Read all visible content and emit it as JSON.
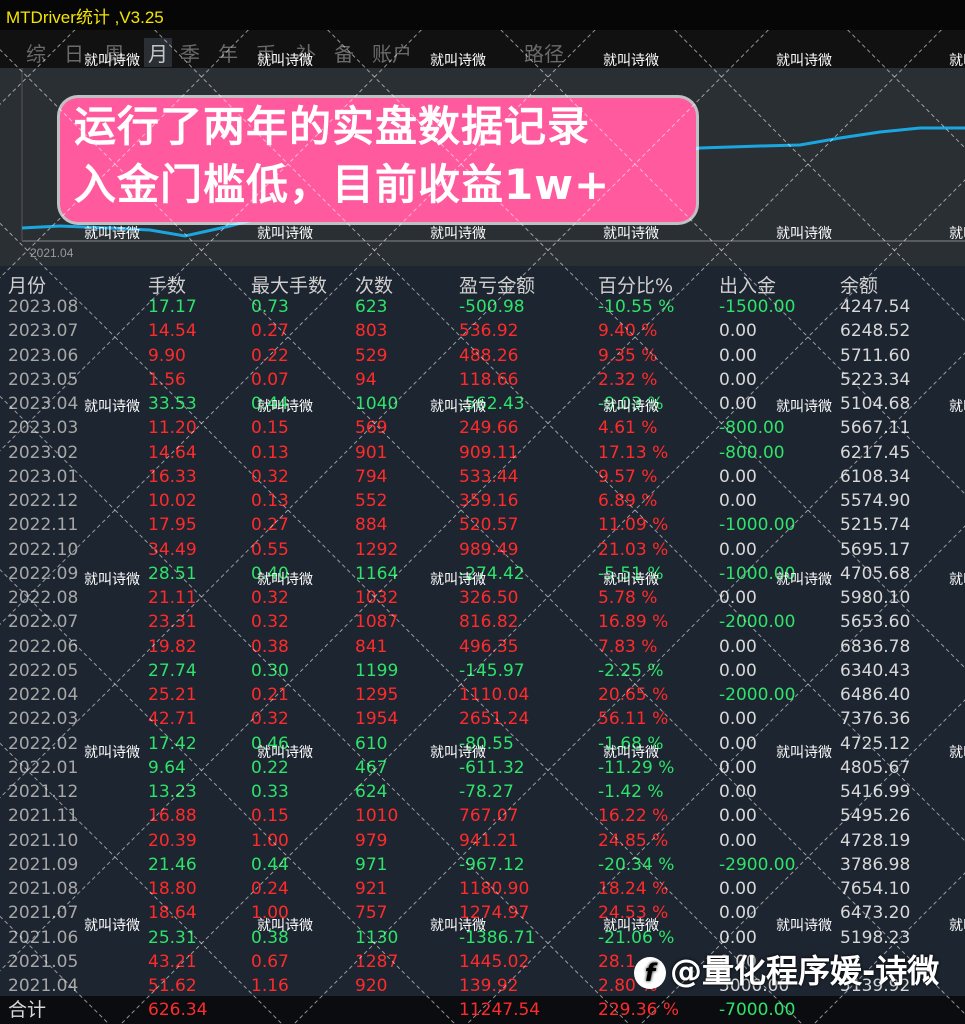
{
  "app": {
    "title": "MTDriver统计 ,V3.25"
  },
  "tabs": [
    {
      "label": "综",
      "active": false
    },
    {
      "label": "日",
      "active": false
    },
    {
      "label": "周",
      "active": false
    },
    {
      "label": "月",
      "active": true
    },
    {
      "label": "季",
      "active": false
    },
    {
      "label": "年",
      "active": false
    },
    {
      "label": "币",
      "active": false
    },
    {
      "label": "补",
      "active": false
    },
    {
      "label": "备",
      "active": false
    },
    {
      "label": "账户",
      "active": false
    },
    {
      "label": "路径",
      "active": false
    }
  ],
  "chart": {
    "x_start_label": "2021.04",
    "line_color": "#1aa7e0"
  },
  "banner": {
    "line1": "运行了两年的实盘数据记录",
    "line2": "入金门槛低，目前收益1w+"
  },
  "watermark": "就叫诗微",
  "brand": {
    "icon": "f",
    "text": "@量化程序媛-诗微"
  },
  "table": {
    "headers": [
      "月份",
      "手数",
      "最大手数",
      "次数",
      "盈亏金额",
      "百分比%",
      "出入金",
      "余额"
    ],
    "rows": [
      {
        "month": "2023.08",
        "lots": "17.17",
        "max_lots": "0.73",
        "count": "623",
        "pnl": "-500.98",
        "pct": "-10.55 %",
        "flow": "-1500.00",
        "balance": "4247.54",
        "color": "green"
      },
      {
        "month": "2023.07",
        "lots": "14.54",
        "max_lots": "0.27",
        "count": "803",
        "pnl": "536.92",
        "pct": "9.40 %",
        "flow": "0.00",
        "balance": "6248.52",
        "color": "red"
      },
      {
        "month": "2023.06",
        "lots": "9.90",
        "max_lots": "0.22",
        "count": "529",
        "pnl": "488.26",
        "pct": "9.35 %",
        "flow": "0.00",
        "balance": "5711.60",
        "color": "red"
      },
      {
        "month": "2023.05",
        "lots": "1.56",
        "max_lots": "0.07",
        "count": "94",
        "pnl": "118.66",
        "pct": "2.32 %",
        "flow": "0.00",
        "balance": "5223.34",
        "color": "red"
      },
      {
        "month": "2023.04",
        "lots": "33.53",
        "max_lots": "0.44",
        "count": "1040",
        "pnl": "-562.43",
        "pct": "-9.03 %",
        "flow": "0.00",
        "balance": "5104.68",
        "color": "green"
      },
      {
        "month": "2023.03",
        "lots": "11.20",
        "max_lots": "0.15",
        "count": "569",
        "pnl": "249.66",
        "pct": "4.61 %",
        "flow": "-800.00",
        "balance": "5667.11",
        "color": "red"
      },
      {
        "month": "2023.02",
        "lots": "14.64",
        "max_lots": "0.13",
        "count": "901",
        "pnl": "909.11",
        "pct": "17.13 %",
        "flow": "-800.00",
        "balance": "6217.45",
        "color": "red"
      },
      {
        "month": "2023.01",
        "lots": "16.33",
        "max_lots": "0.32",
        "count": "794",
        "pnl": "533.44",
        "pct": "9.57 %",
        "flow": "0.00",
        "balance": "6108.34",
        "color": "red"
      },
      {
        "month": "2022.12",
        "lots": "10.02",
        "max_lots": "0.13",
        "count": "552",
        "pnl": "359.16",
        "pct": "6.89 %",
        "flow": "0.00",
        "balance": "5574.90",
        "color": "red"
      },
      {
        "month": "2022.11",
        "lots": "17.95",
        "max_lots": "0.27",
        "count": "884",
        "pnl": "520.57",
        "pct": "11.09 %",
        "flow": "-1000.00",
        "balance": "5215.74",
        "color": "red"
      },
      {
        "month": "2022.10",
        "lots": "34.49",
        "max_lots": "0.55",
        "count": "1292",
        "pnl": "989.49",
        "pct": "21.03 %",
        "flow": "0.00",
        "balance": "5695.17",
        "color": "red"
      },
      {
        "month": "2022.09",
        "lots": "28.51",
        "max_lots": "0.40",
        "count": "1164",
        "pnl": "-274.42",
        "pct": "-5.51 %",
        "flow": "-1000.00",
        "balance": "4705.68",
        "color": "green"
      },
      {
        "month": "2022.08",
        "lots": "21.11",
        "max_lots": "0.32",
        "count": "1032",
        "pnl": "326.50",
        "pct": "5.78 %",
        "flow": "0.00",
        "balance": "5980.10",
        "color": "red"
      },
      {
        "month": "2022.07",
        "lots": "23.31",
        "max_lots": "0.32",
        "count": "1087",
        "pnl": "816.82",
        "pct": "16.89 %",
        "flow": "-2000.00",
        "balance": "5653.60",
        "color": "red"
      },
      {
        "month": "2022.06",
        "lots": "19.82",
        "max_lots": "0.38",
        "count": "841",
        "pnl": "496.35",
        "pct": "7.83 %",
        "flow": "0.00",
        "balance": "6836.78",
        "color": "red"
      },
      {
        "month": "2022.05",
        "lots": "27.74",
        "max_lots": "0.30",
        "count": "1199",
        "pnl": "-145.97",
        "pct": "-2.25 %",
        "flow": "0.00",
        "balance": "6340.43",
        "color": "green"
      },
      {
        "month": "2022.04",
        "lots": "25.21",
        "max_lots": "0.21",
        "count": "1295",
        "pnl": "1110.04",
        "pct": "20.65 %",
        "flow": "-2000.00",
        "balance": "6486.40",
        "color": "red"
      },
      {
        "month": "2022.03",
        "lots": "42.71",
        "max_lots": "0.32",
        "count": "1954",
        "pnl": "2651.24",
        "pct": "56.11 %",
        "flow": "0.00",
        "balance": "7376.36",
        "color": "red"
      },
      {
        "month": "2022.02",
        "lots": "17.42",
        "max_lots": "0.46",
        "count": "610",
        "pnl": "-80.55",
        "pct": "-1.68 %",
        "flow": "0.00",
        "balance": "4725.12",
        "color": "green"
      },
      {
        "month": "2022.01",
        "lots": "9.64",
        "max_lots": "0.22",
        "count": "467",
        "pnl": "-611.32",
        "pct": "-11.29 %",
        "flow": "0.00",
        "balance": "4805.67",
        "color": "green"
      },
      {
        "month": "2021.12",
        "lots": "13.23",
        "max_lots": "0.33",
        "count": "624",
        "pnl": "-78.27",
        "pct": "-1.42 %",
        "flow": "0.00",
        "balance": "5416.99",
        "color": "green"
      },
      {
        "month": "2021.11",
        "lots": "16.88",
        "max_lots": "0.15",
        "count": "1010",
        "pnl": "767.07",
        "pct": "16.22 %",
        "flow": "0.00",
        "balance": "5495.26",
        "color": "red"
      },
      {
        "month": "2021.10",
        "lots": "20.39",
        "max_lots": "1.00",
        "count": "979",
        "pnl": "941.21",
        "pct": "24.85 %",
        "flow": "0.00",
        "balance": "4728.19",
        "color": "red"
      },
      {
        "month": "2021.09",
        "lots": "21.46",
        "max_lots": "0.44",
        "count": "971",
        "pnl": "-967.12",
        "pct": "-20.34 %",
        "flow": "-2900.00",
        "balance": "3786.98",
        "color": "green"
      },
      {
        "month": "2021.08",
        "lots": "18.80",
        "max_lots": "0.24",
        "count": "921",
        "pnl": "1180.90",
        "pct": "18.24 %",
        "flow": "0.00",
        "balance": "7654.10",
        "color": "red"
      },
      {
        "month": "2021.07",
        "lots": "18.64",
        "max_lots": "1.00",
        "count": "757",
        "pnl": "1274.97",
        "pct": "24.53 %",
        "flow": "0.00",
        "balance": "6473.20",
        "color": "red"
      },
      {
        "month": "2021.06",
        "lots": "25.31",
        "max_lots": "0.38",
        "count": "1130",
        "pnl": "-1386.71",
        "pct": "-21.06 %",
        "flow": "0.00",
        "balance": "5198.23",
        "color": "green"
      },
      {
        "month": "2021.05",
        "lots": "43.21",
        "max_lots": "0.67",
        "count": "1287",
        "pnl": "1445.02",
        "pct": "28.1",
        "flow": "0.00",
        "balance": "",
        "color": "red"
      },
      {
        "month": "2021.04",
        "lots": "51.62",
        "max_lots": "1.16",
        "count": "920",
        "pnl": "139.92",
        "pct": "2.80 %",
        "flow": "5000.00",
        "balance": "5139.92",
        "color": "red"
      }
    ],
    "total": {
      "label": "合计",
      "lots": "626.34",
      "pnl": "11247.54",
      "pct": "229.36 %",
      "flow": "-7000.00"
    }
  }
}
